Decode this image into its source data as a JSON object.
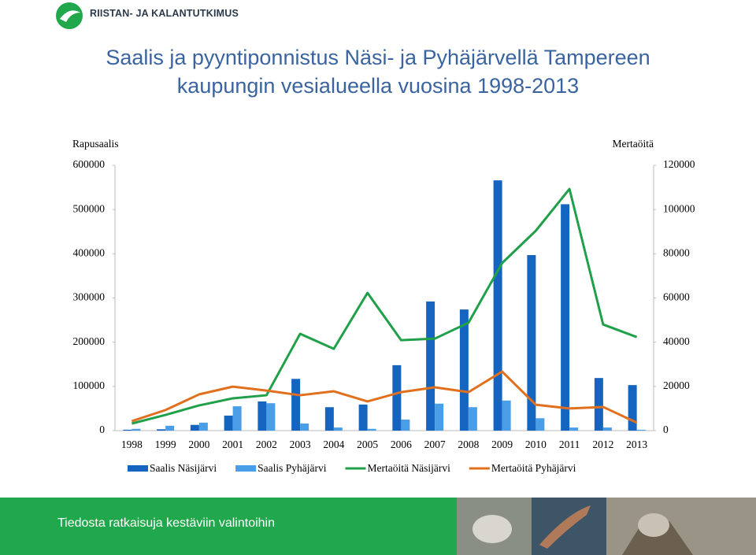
{
  "logo_text": "RIISTAN- JA KALANTUTKIMUS",
  "footer": "Tiedosta ratkaisuja kestäviin valintoihin",
  "chart_data": {
    "type": "bar",
    "title": "Saalis ja pyyntiponnistus Näsi- ja Pyhäjärvellä Tampereen kaupungin vesialueella vuosina 1998-2013",
    "y_label": "Rapusaalis",
    "y2_label": "Mertaöitä",
    "categories": [
      "1998",
      "1999",
      "2000",
      "2001",
      "2002",
      "2003",
      "2004",
      "2005",
      "2006",
      "2007",
      "2008",
      "2009",
      "2010",
      "2011",
      "2012",
      "2013"
    ],
    "ylim": [
      0,
      600000
    ],
    "yticks": [
      0,
      100000,
      200000,
      300000,
      400000,
      500000,
      600000
    ],
    "y2lim": [
      0,
      120000
    ],
    "y2ticks": [
      0,
      20000,
      40000,
      60000,
      80000,
      100000,
      120000
    ],
    "grid": false,
    "series": [
      {
        "name": "Saalis Näsijärvi",
        "type": "bar",
        "color": "#1565c0",
        "values": [
          2000,
          3000,
          13000,
          34000,
          66000,
          117000,
          53000,
          59000,
          148000,
          292000,
          274000,
          566000,
          397000,
          512000,
          119000,
          103000
        ]
      },
      {
        "name": "Saalis Pyhäjärvi",
        "type": "bar",
        "color": "#4a9ee8",
        "values": [
          4000,
          11000,
          18000,
          55000,
          62000,
          16000,
          7000,
          4000,
          25000,
          61000,
          53000,
          68000,
          28000,
          7000,
          7000,
          2000
        ]
      },
      {
        "name": "Mertaöitä Näsijärvi",
        "type": "line",
        "axis": "y2",
        "color": "#20a04a",
        "values": [
          3200,
          7100,
          11400,
          14600,
          16000,
          43800,
          37000,
          62300,
          40900,
          41600,
          48800,
          75800,
          90400,
          109300,
          48000,
          42300
        ]
      },
      {
        "name": "Mertaöitä Pyhäjärvi",
        "type": "line",
        "axis": "y2",
        "color": "#e0701e",
        "values": [
          4300,
          9300,
          16400,
          19900,
          18100,
          16000,
          17800,
          13200,
          17400,
          19600,
          17400,
          26700,
          11700,
          10000,
          10700,
          3600
        ]
      }
    ]
  }
}
